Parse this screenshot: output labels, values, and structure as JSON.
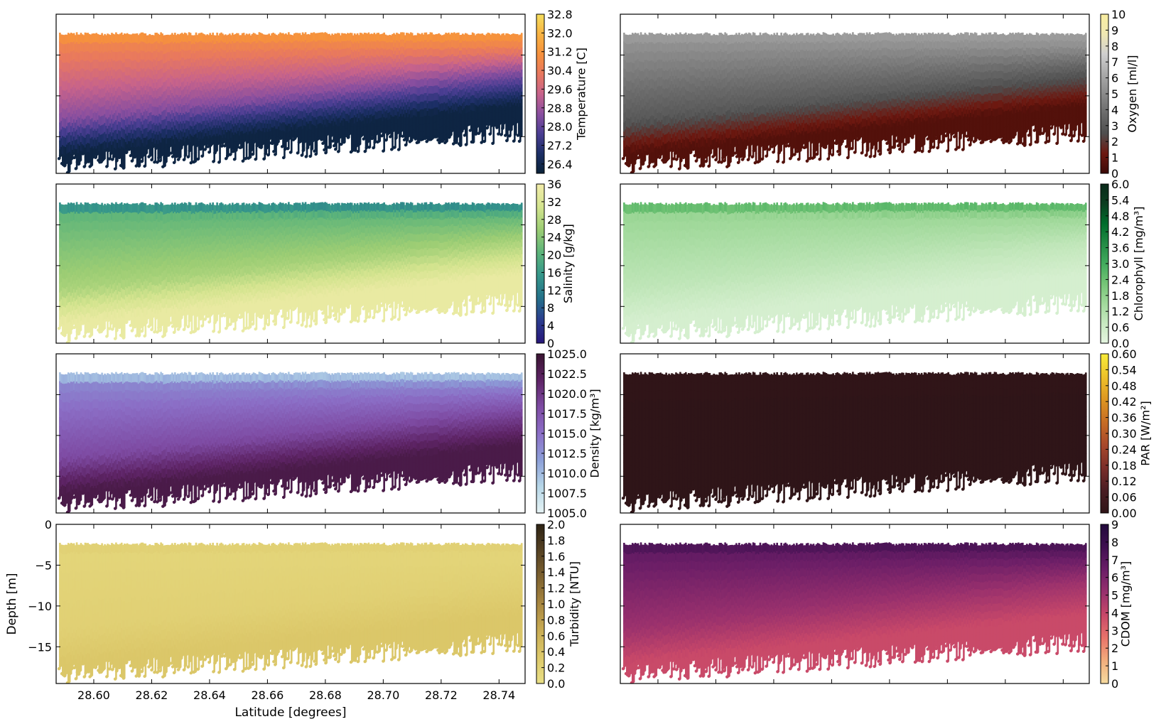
{
  "figure": {
    "xlabel": "Latitude [degrees]",
    "ylabel": "Depth [m]",
    "x_ticks": [
      "28.60",
      "28.62",
      "28.64",
      "28.66",
      "28.68",
      "28.70",
      "28.72",
      "28.74"
    ],
    "x_tick_values": [
      28.6,
      28.62,
      28.64,
      28.66,
      28.68,
      28.7,
      28.72,
      28.74
    ],
    "xlim": [
      28.587,
      28.749
    ],
    "y_ticks": [
      "0",
      "−5",
      "−10",
      "−15"
    ],
    "y_tick_values": [
      0,
      -5,
      -10,
      -15
    ],
    "ylim": [
      -19.5,
      0
    ],
    "layout": "4 rows x 2 columns, shared x and y axes"
  },
  "chart_data": [
    {
      "type": "scatter",
      "variable": "temperature",
      "colorbar_label": "Temperature [C]",
      "colormap": [
        "#0a2238",
        "#1c2f66",
        "#4b3e93",
        "#8a4f9f",
        "#c7638b",
        "#e8785f",
        "#f6913d",
        "#f8b342",
        "#f5de5e"
      ],
      "clim": [
        26.0,
        32.8
      ],
      "colorbar_ticks": [
        "26.4",
        "27.2",
        "28.0",
        "28.8",
        "29.6",
        "30.4",
        "31.2",
        "32.0",
        "32.8"
      ],
      "colorbar_tick_values": [
        26.4,
        27.2,
        28.0,
        28.8,
        29.6,
        30.4,
        31.2,
        32.0,
        32.8
      ],
      "profile": {
        "surface": 31.5,
        "upper": 30.6,
        "thermocline": 28.5,
        "deep": 26.2
      },
      "x_ticklabels_shown": false,
      "y_ticklabels_shown": false
    },
    {
      "type": "scatter",
      "variable": "oxygen",
      "colorbar_label": "Oxygen [ml/l]",
      "colormap": [
        "#3b0a07",
        "#6d1810",
        "#4e4e4e",
        "#6a6a6a",
        "#8a8a8a",
        "#aaaaaa",
        "#cfcfcf",
        "#f0e8b2",
        "#f8eda0"
      ],
      "clim": [
        0,
        10
      ],
      "colorbar_ticks": [
        "0",
        "1",
        "2",
        "3",
        "4",
        "5",
        "6",
        "7",
        "8",
        "9",
        "10"
      ],
      "colorbar_tick_values": [
        0,
        1,
        2,
        3,
        4,
        5,
        6,
        7,
        8,
        9,
        10
      ],
      "profile": {
        "surface": 6.0,
        "upper": 5.2,
        "thermocline": 3.0,
        "deep": 0.6
      },
      "x_ticklabels_shown": false,
      "y_ticklabels_shown": false
    },
    {
      "type": "scatter",
      "variable": "salinity",
      "colorbar_label": "Salinity [g/kg]",
      "colormap": [
        "#27177a",
        "#2b3c8e",
        "#25728a",
        "#36978a",
        "#5db47a",
        "#9ccd74",
        "#d4e48f",
        "#f2ecaa"
      ],
      "clim": [
        0,
        36
      ],
      "colorbar_ticks": [
        "0",
        "4",
        "8",
        "12",
        "16",
        "20",
        "24",
        "28",
        "32",
        "36"
      ],
      "colorbar_tick_values": [
        0,
        4,
        8,
        12,
        16,
        20,
        24,
        28,
        32,
        36
      ],
      "profile": {
        "surface": 10.0,
        "upper": 21.0,
        "thermocline": 27.0,
        "deep": 34.5
      },
      "x_ticklabels_shown": false,
      "y_ticklabels_shown": false
    },
    {
      "type": "scatter",
      "variable": "chlorophyll",
      "colorbar_label": "Chlorophyll [mg/m³]",
      "colormap": [
        "#e5f5e0",
        "#c7e9c0",
        "#a1d99b",
        "#74c476",
        "#41ab5d",
        "#238b45",
        "#006d2c",
        "#0b3d20",
        "#0a2a1a"
      ],
      "clim": [
        0,
        6.0
      ],
      "colorbar_ticks": [
        "0.0",
        "0.6",
        "1.2",
        "1.8",
        "2.4",
        "3.0",
        "3.6",
        "4.2",
        "4.8",
        "5.4",
        "6.0"
      ],
      "colorbar_tick_values": [
        0.0,
        0.6,
        1.2,
        1.8,
        2.4,
        3.0,
        3.6,
        4.2,
        4.8,
        5.4,
        6.0
      ],
      "profile": {
        "surface": 3.2,
        "upper": 1.6,
        "thermocline": 0.9,
        "deep": 0.4
      },
      "x_ticklabels_shown": false,
      "y_ticklabels_shown": false
    },
    {
      "type": "scatter",
      "variable": "density",
      "colorbar_label": "Density [kg/m³]",
      "colormap": [
        "#e6f3f4",
        "#b6d6e7",
        "#8c9fd8",
        "#8b6ec6",
        "#7e4ba3",
        "#5e2466",
        "#3a1431"
      ],
      "clim": [
        1005.0,
        1025.0
      ],
      "colorbar_ticks": [
        "1005.0",
        "1007.5",
        "1010.0",
        "1012.5",
        "1015.0",
        "1017.5",
        "1020.0",
        "1022.5",
        "1025.0"
      ],
      "colorbar_tick_values": [
        1005.0,
        1007.5,
        1010.0,
        1012.5,
        1015.0,
        1017.5,
        1020.0,
        1022.5,
        1025.0
      ],
      "profile": {
        "surface": 1007.0,
        "upper": 1013.5,
        "thermocline": 1018.5,
        "deep": 1023.5
      },
      "x_ticklabels_shown": false,
      "y_ticklabels_shown": false
    },
    {
      "type": "scatter",
      "variable": "par",
      "colorbar_label": "PAR [W/m²]",
      "colormap": [
        "#2f1518",
        "#4a1d23",
        "#7c2e2a",
        "#a8482b",
        "#c76d25",
        "#dd9621",
        "#eec22a",
        "#f8ec3a"
      ],
      "clim": [
        0,
        0.6
      ],
      "colorbar_ticks": [
        "0.00",
        "0.06",
        "0.12",
        "0.18",
        "0.24",
        "0.30",
        "0.36",
        "0.42",
        "0.48",
        "0.54",
        "0.60"
      ],
      "colorbar_tick_values": [
        0.0,
        0.06,
        0.12,
        0.18,
        0.24,
        0.3,
        0.36,
        0.42,
        0.48,
        0.54,
        0.6
      ],
      "profile": {
        "surface": 0.005,
        "upper": 0.002,
        "thermocline": 0.0,
        "deep": 0.0
      },
      "x_ticklabels_shown": false,
      "y_ticklabels_shown": false
    },
    {
      "type": "scatter",
      "variable": "turbidity",
      "colorbar_label": "Turbidity [NTU]",
      "colormap": [
        "#e9df86",
        "#dcc86a",
        "#c9ac54",
        "#a88640",
        "#7e6230",
        "#564224",
        "#2e2414"
      ],
      "clim": [
        0,
        2.0
      ],
      "colorbar_ticks": [
        "0.0",
        "0.2",
        "0.4",
        "0.6",
        "0.8",
        "1.0",
        "1.2",
        "1.4",
        "1.6",
        "1.8",
        "2.0"
      ],
      "colorbar_tick_values": [
        0.0,
        0.2,
        0.4,
        0.6,
        0.8,
        1.0,
        1.2,
        1.4,
        1.6,
        1.8,
        2.0
      ],
      "profile": {
        "surface": 0.25,
        "upper": 0.15,
        "thermocline": 0.22,
        "deep": 0.35
      },
      "x_ticklabels_shown": true,
      "y_ticklabels_shown": true
    },
    {
      "type": "scatter",
      "variable": "cdom",
      "colorbar_label": "CDOM [mg/m³]",
      "colormap": [
        "#f6dba0",
        "#f2ad7c",
        "#e8736a",
        "#c84869",
        "#98306d",
        "#6b1e67",
        "#3f1050",
        "#220a3c"
      ],
      "clim": [
        0,
        9
      ],
      "colorbar_ticks": [
        "0",
        "1",
        "2",
        "3",
        "4",
        "5",
        "6",
        "7",
        "8",
        "9"
      ],
      "colorbar_tick_values": [
        0,
        1,
        2,
        3,
        4,
        5,
        6,
        7,
        8,
        9
      ],
      "profile": {
        "surface": 7.8,
        "upper": 6.6,
        "thermocline": 5.0,
        "deep": 3.8
      },
      "x_ticklabels_shown": false,
      "y_ticklabels_shown": false
    }
  ]
}
